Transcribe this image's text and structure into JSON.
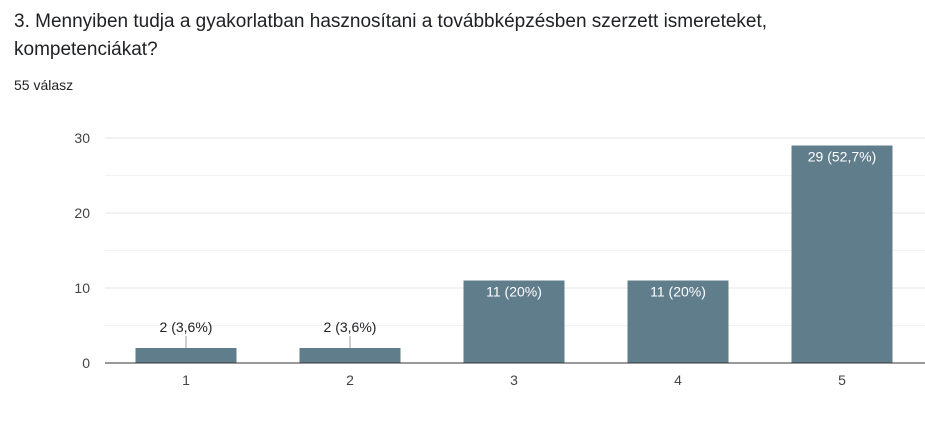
{
  "question": {
    "title": "3. Mennyiben tudja a gyakorlatban hasznosítani a továbbképzésben szerzett ismereteket, kompetenciákat?",
    "response_count": "55 válasz"
  },
  "colors": {
    "bar": "#607d8b",
    "grid": "#ebebeb",
    "axis": "#333333"
  },
  "chart_data": {
    "type": "bar",
    "categories": [
      "1",
      "2",
      "3",
      "4",
      "5"
    ],
    "values": [
      2,
      2,
      11,
      11,
      29
    ],
    "data_labels": [
      "2 (3,6%)",
      "2 (3,6%)",
      "11 (20%)",
      "11 (20%)",
      "29 (52,7%)"
    ],
    "yticks": [
      "0",
      "10",
      "20",
      "30"
    ],
    "ylim": [
      0,
      30
    ],
    "grid": true
  }
}
